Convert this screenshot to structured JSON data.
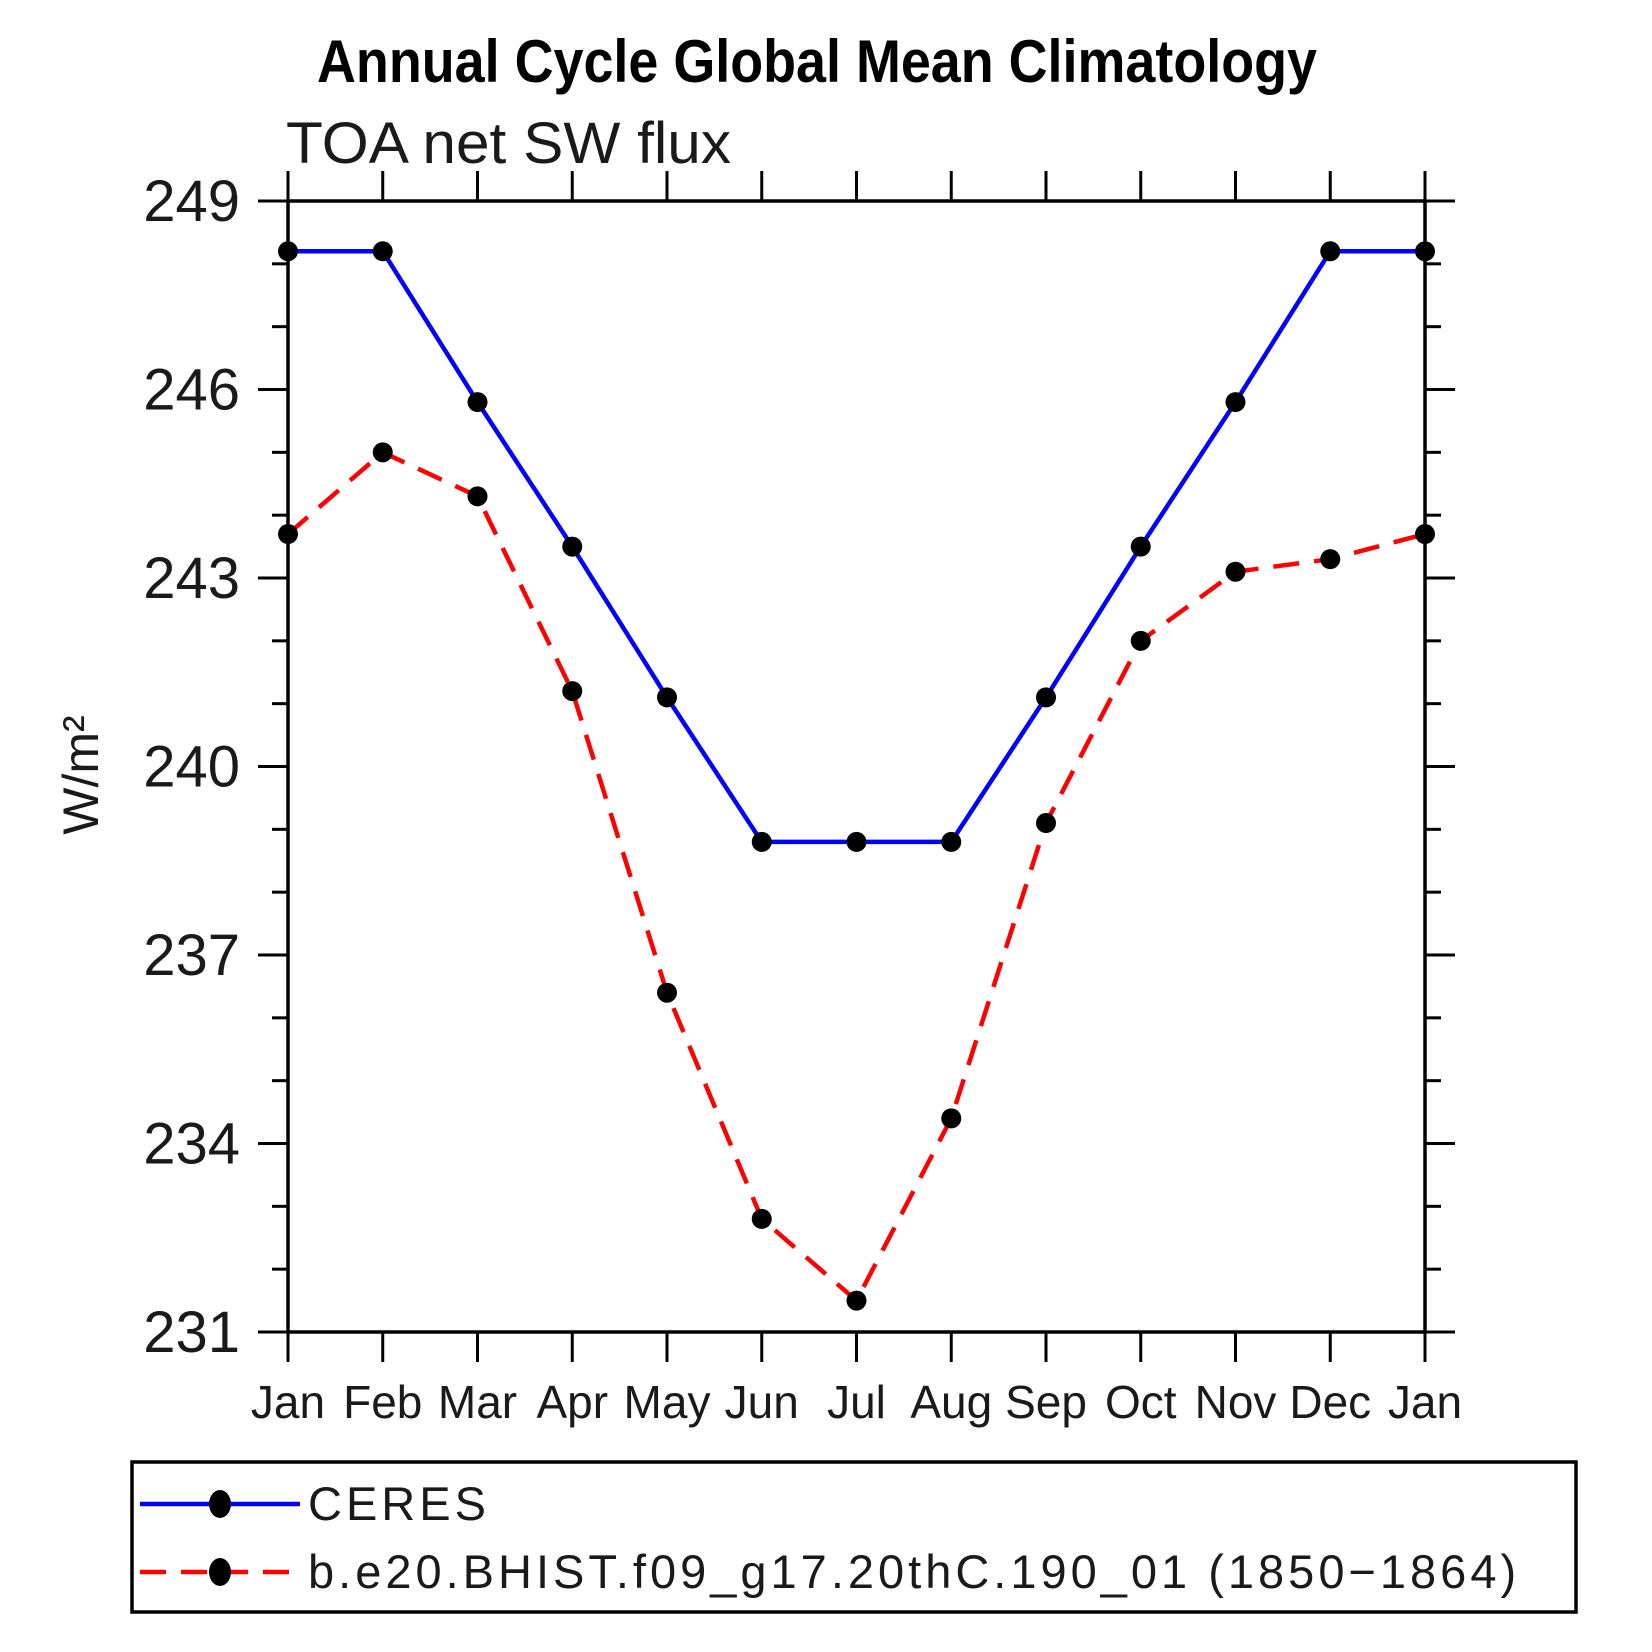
{
  "chart_data": {
    "type": "line",
    "title": "Annual Cycle Global Mean Climatology",
    "subtitle": "TOA net SW flux",
    "ylabel": "W/m²",
    "x_categories": [
      "Jan",
      "Feb",
      "Mar",
      "Apr",
      "May",
      "Jun",
      "Jul",
      "Aug",
      "Sep",
      "Oct",
      "Nov",
      "Dec",
      "Jan"
    ],
    "ylim": [
      231,
      249
    ],
    "ytick_major": [
      231,
      234,
      237,
      240,
      243,
      246,
      249
    ],
    "ytick_minor_step": 1,
    "grid": false,
    "legend_position": "bottom",
    "colors": {
      "axis": "#000000",
      "text": "#1a1a1a",
      "marker": "#000000"
    },
    "series": [
      {
        "name": "CERES",
        "color": "#0000ff",
        "line_style": "solid",
        "values": [
          248.2,
          248.2,
          245.8,
          243.5,
          241.1,
          238.8,
          238.8,
          238.8,
          241.1,
          243.5,
          245.8,
          248.2,
          248.2
        ]
      },
      {
        "name": "b.e20.BHIST.f09_g17.20thC.190_01 (1850−1864)",
        "color": "#ff0000",
        "line_style": "dashed",
        "values": [
          243.7,
          245.0,
          244.3,
          241.2,
          236.4,
          232.8,
          231.5,
          234.4,
          239.1,
          242.0,
          243.1,
          243.3,
          243.7
        ]
      }
    ]
  }
}
